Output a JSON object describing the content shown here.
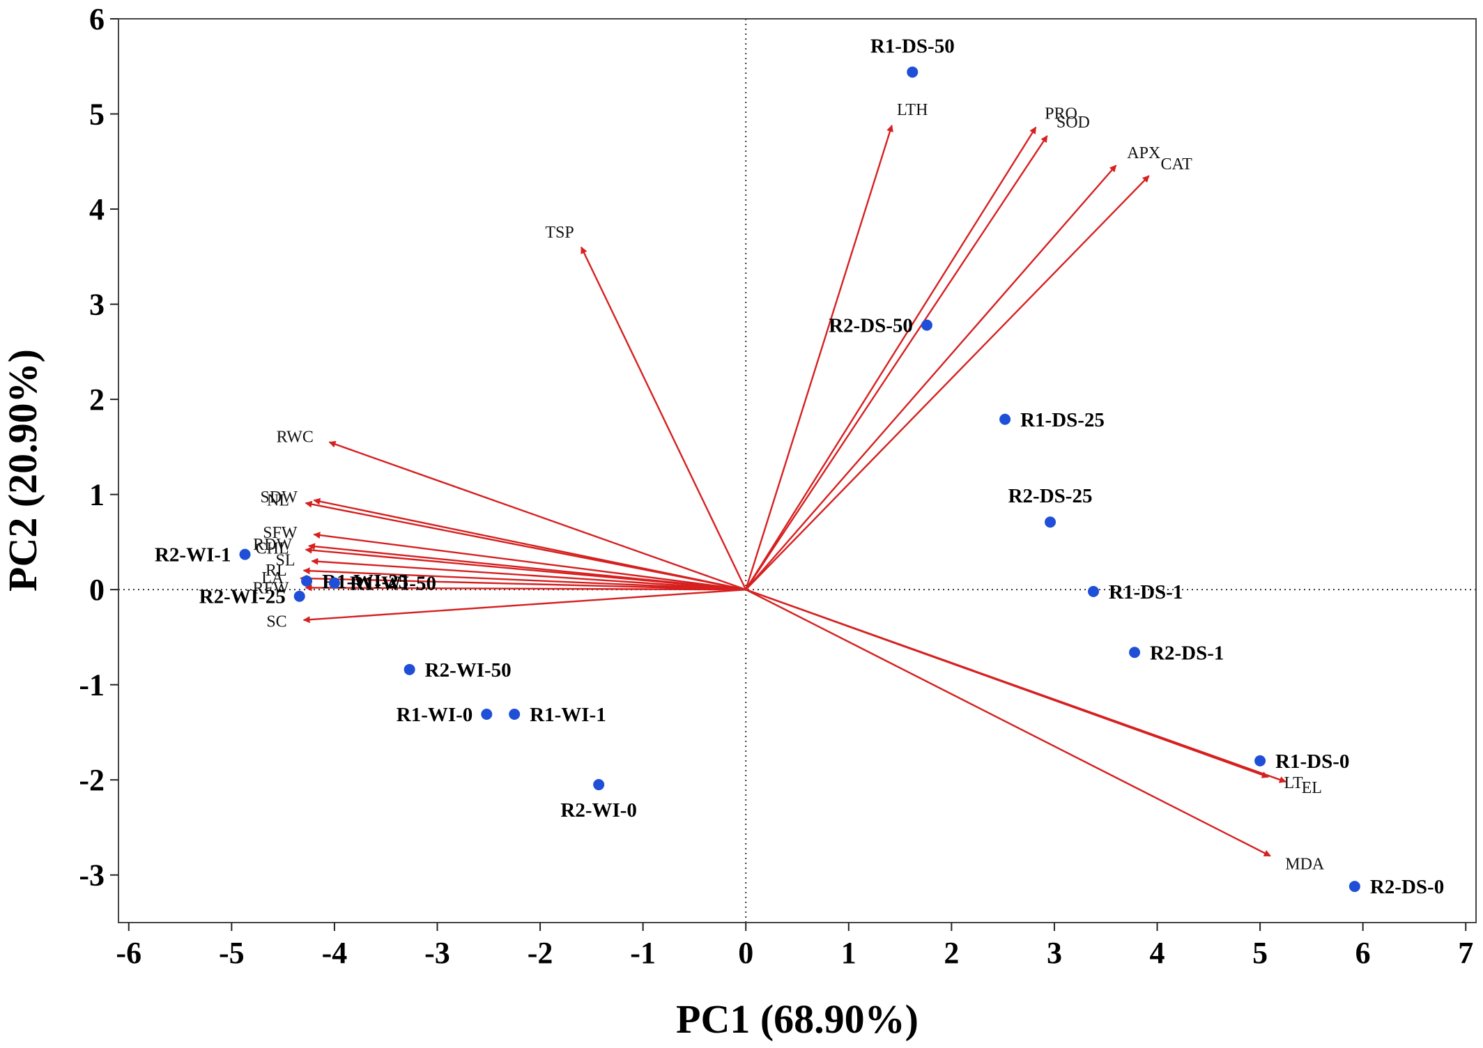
{
  "chart_data": {
    "type": "scatter",
    "subtype": "pca-biplot",
    "title": "",
    "xlabel": "PC1 (68.90%)",
    "ylabel": "PC2 (20.90%)",
    "xlim": [
      -6.1,
      7.1
    ],
    "ylim": [
      -3.5,
      6.0
    ],
    "xticks": [
      -6,
      -5,
      -4,
      -3,
      -2,
      -1,
      0,
      1,
      2,
      3,
      4,
      5,
      6,
      7
    ],
    "yticks": [
      -3,
      -2,
      -1,
      0,
      1,
      2,
      3,
      4,
      5,
      6
    ],
    "grid": false,
    "zero_lines": true,
    "colors": {
      "points": "#1f4fd6",
      "vectors": "#d62020",
      "axes": "#444444"
    },
    "points": [
      {
        "label": "R1-DS-50",
        "x": 1.62,
        "y": 5.44,
        "label_pos": "above"
      },
      {
        "label": "R2-DS-50",
        "x": 1.76,
        "y": 2.78,
        "label_pos": "left"
      },
      {
        "label": "R1-DS-25",
        "x": 2.52,
        "y": 1.79,
        "label_pos": "right"
      },
      {
        "label": "R2-DS-25",
        "x": 2.96,
        "y": 0.71,
        "label_pos": "above"
      },
      {
        "label": "R1-DS-1",
        "x": 3.38,
        "y": -0.02,
        "label_pos": "right"
      },
      {
        "label": "R2-DS-1",
        "x": 3.78,
        "y": -0.66,
        "label_pos": "right"
      },
      {
        "label": "R1-DS-0",
        "x": 5.0,
        "y": -1.8,
        "label_pos": "right"
      },
      {
        "label": "R2-DS-0",
        "x": 5.92,
        "y": -3.12,
        "label_pos": "right"
      },
      {
        "label": "R2-WI-1",
        "x": -4.87,
        "y": 0.37,
        "label_pos": "left"
      },
      {
        "label": "R1-WI-25",
        "x": -4.27,
        "y": 0.09,
        "label_pos": "right"
      },
      {
        "label": "R1-WI-50",
        "x": -4.0,
        "y": 0.07,
        "label_pos": "right"
      },
      {
        "label": "R2-WI-25",
        "x": -4.34,
        "y": -0.07,
        "label_pos": "left"
      },
      {
        "label": "R2-WI-50",
        "x": -3.27,
        "y": -0.84,
        "label_pos": "right"
      },
      {
        "label": "R1-WI-0",
        "x": -2.52,
        "y": -1.31,
        "label_pos": "left"
      },
      {
        "label": "R1-WI-1",
        "x": -2.25,
        "y": -1.31,
        "label_pos": "right"
      },
      {
        "label": "R2-WI-0",
        "x": -1.43,
        "y": -2.05,
        "label_pos": "below"
      }
    ],
    "vectors": [
      {
        "label": "LTH",
        "x": 1.42,
        "y": 4.88
      },
      {
        "label": "PRO",
        "x": 2.82,
        "y": 4.86
      },
      {
        "label": "SOD",
        "x": 2.93,
        "y": 4.77
      },
      {
        "label": "APX",
        "x": 3.6,
        "y": 4.46
      },
      {
        "label": "CAT",
        "x": 3.92,
        "y": 4.35
      },
      {
        "label": "TSP",
        "x": -1.6,
        "y": 3.6
      },
      {
        "label": "RWC",
        "x": -4.05,
        "y": 1.55
      },
      {
        "label": "SDW",
        "x": -4.2,
        "y": 0.94
      },
      {
        "label": "NL",
        "x": -4.28,
        "y": 0.91
      },
      {
        "label": "SFW",
        "x": -4.2,
        "y": 0.58
      },
      {
        "label": "RDW",
        "x": -4.25,
        "y": 0.46
      },
      {
        "label": "CHL",
        "x": -4.28,
        "y": 0.42
      },
      {
        "label": "SL",
        "x": -4.22,
        "y": 0.3
      },
      {
        "label": "RL",
        "x": -4.3,
        "y": 0.2
      },
      {
        "label": "LA",
        "x": -4.33,
        "y": 0.12
      },
      {
        "label": "RFW",
        "x": -4.28,
        "y": 0.02
      },
      {
        "label": "SC",
        "x": -4.3,
        "y": -0.32
      },
      {
        "label": "LT",
        "x": 5.08,
        "y": -1.97
      },
      {
        "label": "EL",
        "x": 5.25,
        "y": -2.02
      },
      {
        "label": "MDA",
        "x": 5.1,
        "y": -2.8
      }
    ]
  }
}
